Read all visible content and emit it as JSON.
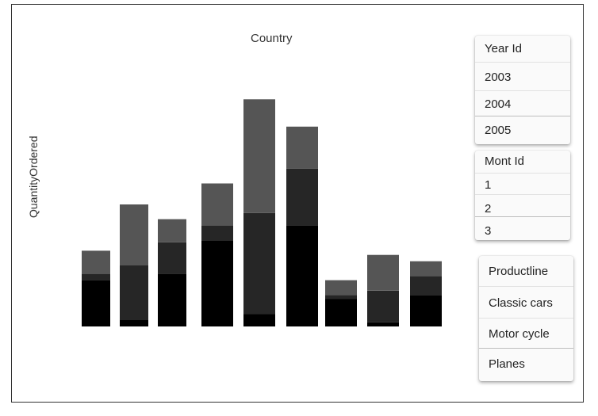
{
  "chart_data": {
    "type": "bar",
    "stacked": true,
    "title": "Country",
    "ylabel": "QuantityOrdered",
    "xlabel": "",
    "categories": [
      "",
      "",
      "",
      "",
      "",
      "",
      "",
      "",
      ""
    ],
    "ylim": [
      0,
      11
    ],
    "series": [
      {
        "color": "#000000",
        "values": [
          2.2,
          0.3,
          2.5,
          4.1,
          0.6,
          4.8,
          1.3,
          0.2,
          1.5
        ]
      },
      {
        "color": "#262626",
        "values": [
          0.3,
          2.6,
          1.5,
          0.7,
          4.8,
          2.7,
          0.2,
          1.5,
          0.9
        ]
      },
      {
        "color": "#555555",
        "values": [
          1.1,
          2.9,
          1.1,
          2.0,
          5.4,
          2.0,
          0.7,
          1.7,
          0.7
        ]
      }
    ]
  },
  "filters": {
    "year": {
      "header": "Year Id",
      "items": [
        "2003",
        "2004",
        "2005"
      ]
    },
    "month": {
      "header": "Mont Id",
      "items": [
        "1",
        "2",
        "3"
      ]
    },
    "productline": {
      "header": "Productline",
      "items": [
        "Classic cars",
        "Motor cycle",
        "Planes"
      ]
    }
  }
}
